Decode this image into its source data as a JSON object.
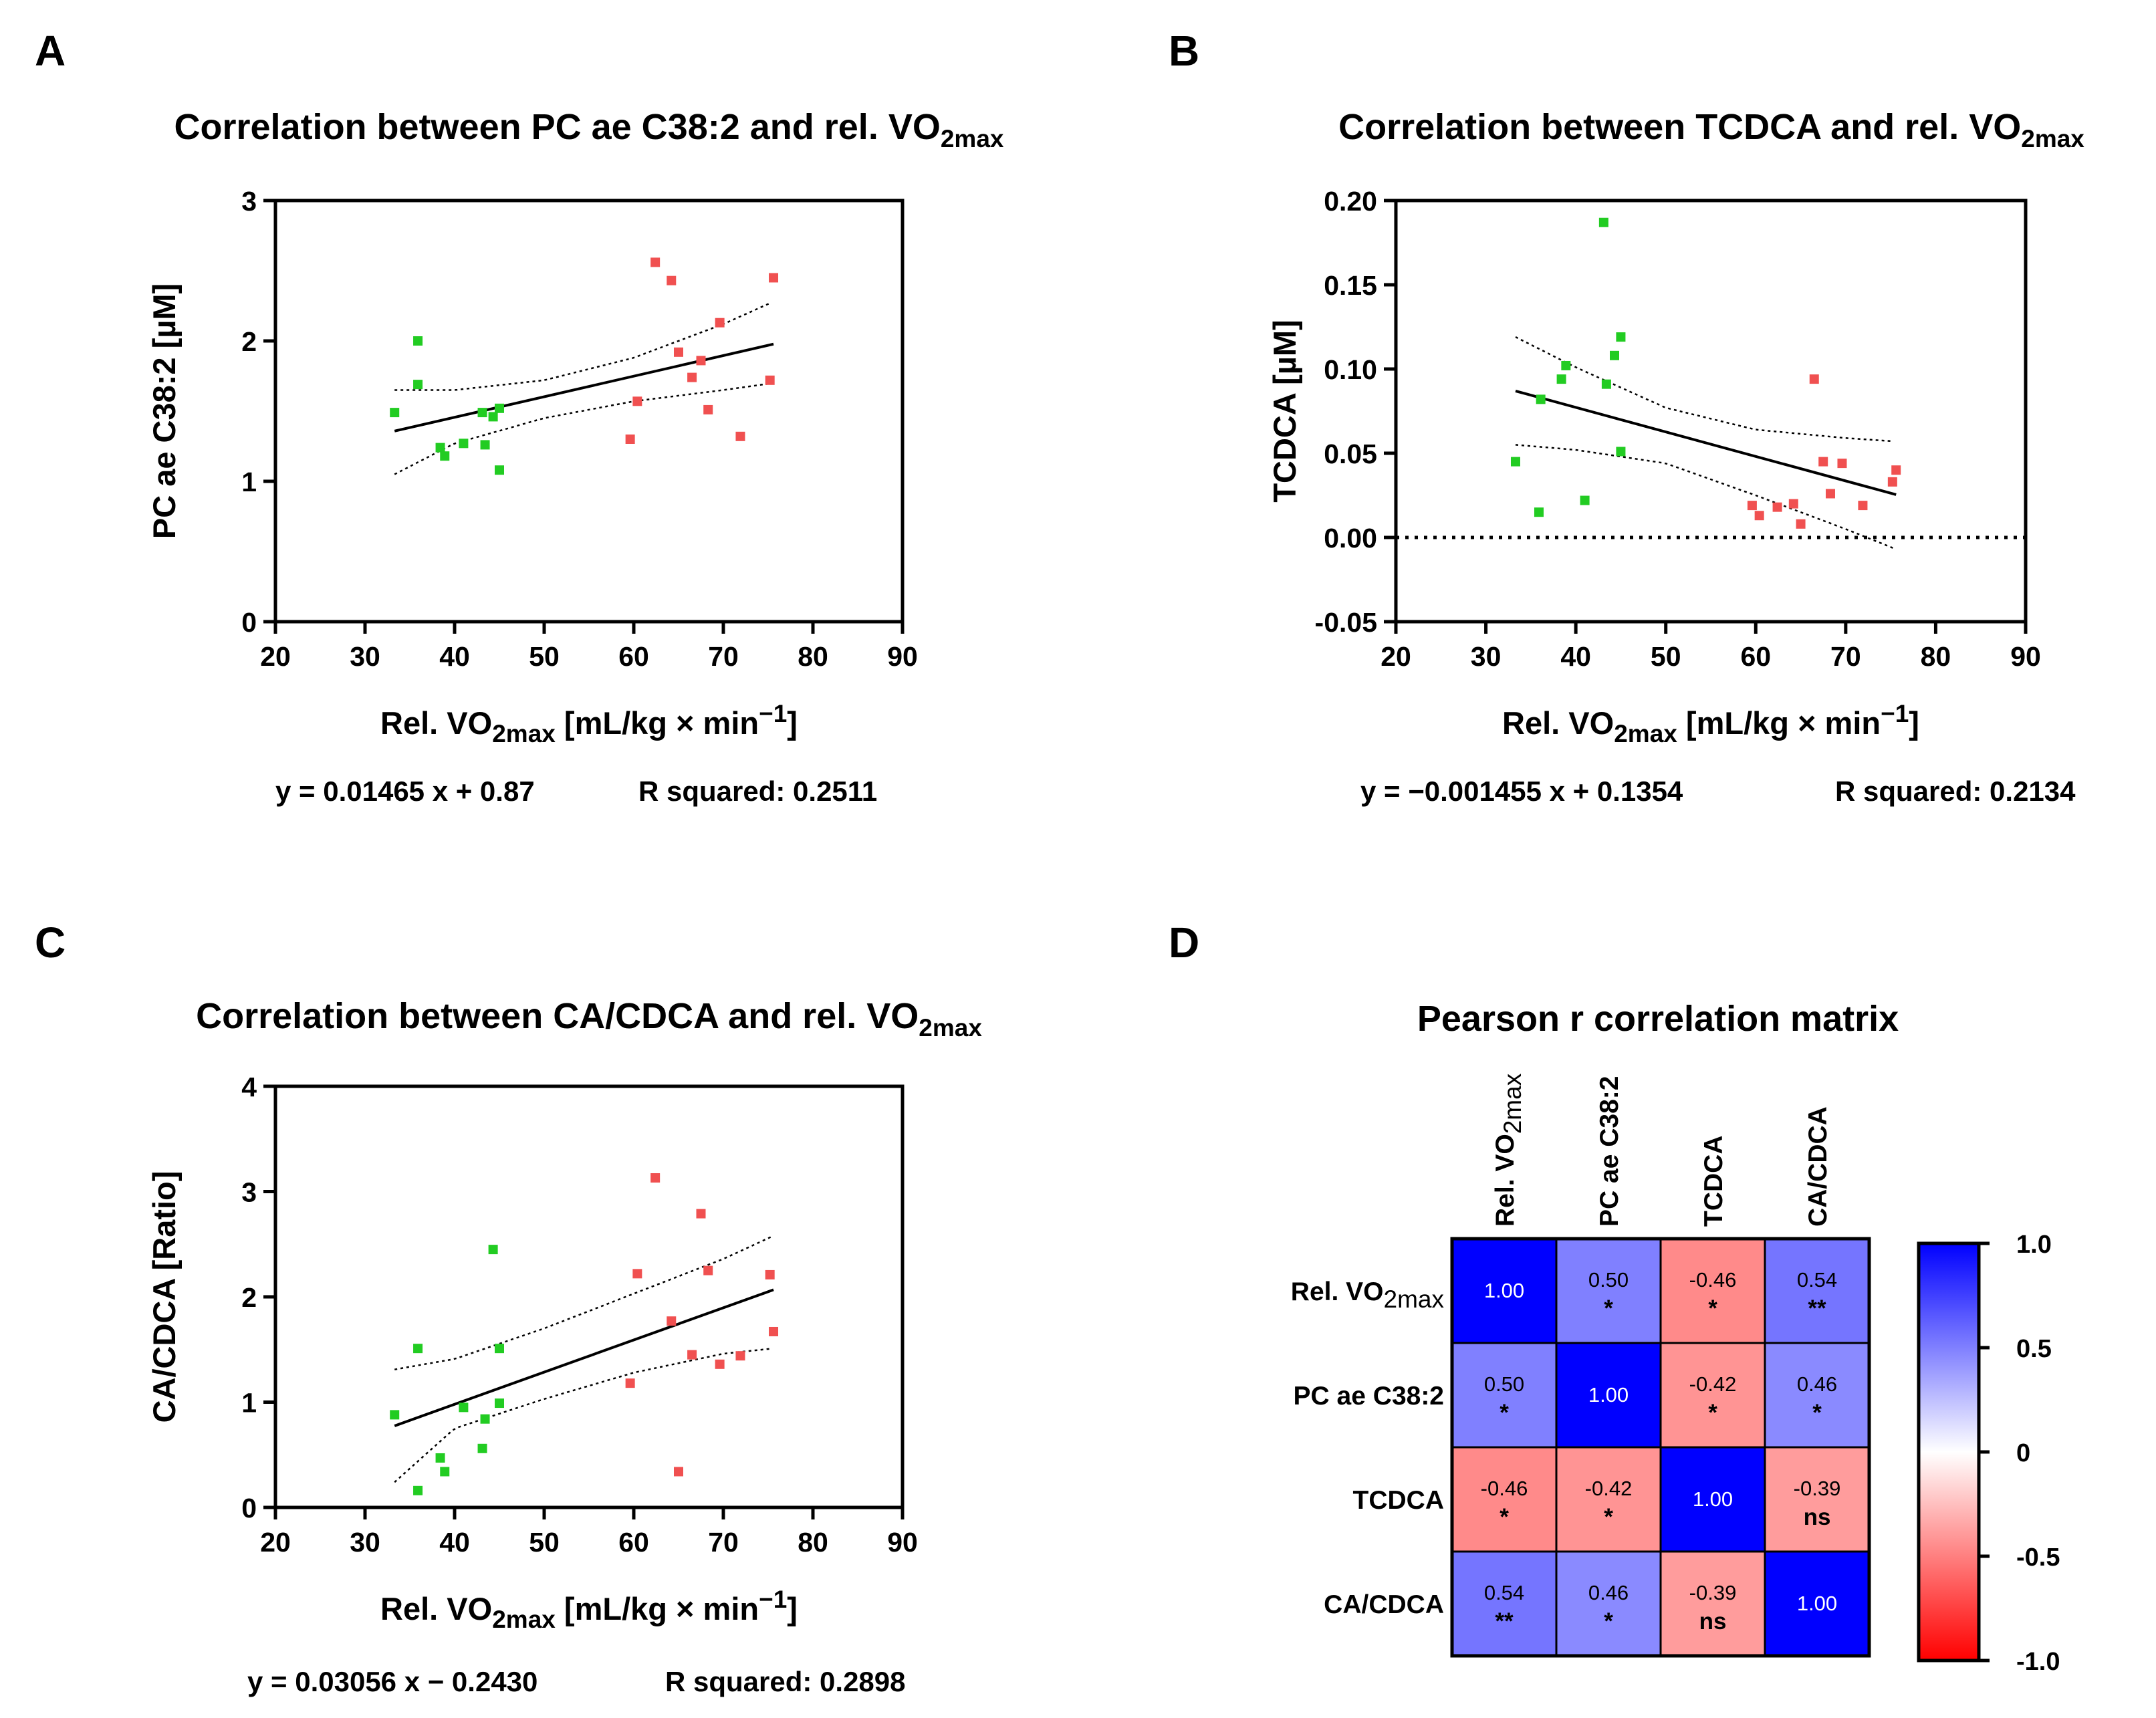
{
  "panel_labels": [
    "A",
    "B",
    "C",
    "D"
  ],
  "colors": {
    "low_group": "#22cc22",
    "high_group": "#f05050",
    "fit_line": "#000000",
    "cb_positive": "#0000ff",
    "cb_negative": "#ff0000",
    "cb_zero": "#ffffff"
  },
  "x_label": {
    "main": "Rel. VO",
    "subscript": "2max",
    "units": " [mL/kg × min",
    "exponent": "−1",
    "close": "]"
  },
  "chart_data": [
    {
      "type": "scatter",
      "panel": "A",
      "title": {
        "main": "Correlation between PC ae C38:2 and rel. VO",
        "subscript": "2max"
      },
      "ylabel": "PC ae C38:2 [µM]",
      "xlim": [
        20,
        90
      ],
      "ylim": [
        0,
        3
      ],
      "xticks": [
        "20",
        "30",
        "40",
        "50",
        "60",
        "70",
        "80",
        "90"
      ],
      "yticks": [
        "0",
        "1",
        "2",
        "3"
      ],
      "series": [
        {
          "name": "low",
          "color": "#22cc22",
          "points": [
            [
              33.3,
              1.49
            ],
            [
              35.9,
              2.0
            ],
            [
              35.9,
              1.69
            ],
            [
              38.4,
              1.24
            ],
            [
              38.9,
              1.18
            ],
            [
              41.0,
              1.27
            ],
            [
              43.1,
              1.49
            ],
            [
              43.4,
              1.26
            ],
            [
              44.3,
              1.46
            ],
            [
              45.0,
              1.52
            ],
            [
              45.0,
              1.08
            ]
          ]
        },
        {
          "name": "high",
          "color": "#f05050",
          "points": [
            [
              59.6,
              1.3
            ],
            [
              60.4,
              1.57
            ],
            [
              62.4,
              2.56
            ],
            [
              64.2,
              2.43
            ],
            [
              65.0,
              1.92
            ],
            [
              66.5,
              1.74
            ],
            [
              67.5,
              1.86
            ],
            [
              68.3,
              1.51
            ],
            [
              69.6,
              2.13
            ],
            [
              71.9,
              1.32
            ],
            [
              75.2,
              1.72
            ],
            [
              75.6,
              2.45
            ]
          ]
        }
      ],
      "fit": {
        "x_range": [
          33.3,
          75.6
        ],
        "slope": 0.01465,
        "intercept": 0.87,
        "upper_band": [
          [
            33.3,
            1.65
          ],
          [
            40,
            1.65
          ],
          [
            50,
            1.72
          ],
          [
            60,
            1.88
          ],
          [
            70,
            2.12
          ],
          [
            75.6,
            2.28
          ]
        ],
        "lower_band": [
          [
            33.3,
            1.05
          ],
          [
            40,
            1.27
          ],
          [
            50,
            1.45
          ],
          [
            60,
            1.57
          ],
          [
            70,
            1.65
          ],
          [
            75.6,
            1.7
          ]
        ]
      },
      "zero_line": false,
      "equation": "y = 0.01465 x + 0.87",
      "r_squared": "R squared: 0.2511"
    },
    {
      "type": "scatter",
      "panel": "B",
      "title": {
        "main": "Correlation between TCDCA and rel. VO",
        "subscript": "2max"
      },
      "ylabel": "TCDCA [µM]",
      "xlim": [
        20,
        90
      ],
      "ylim": [
        -0.05,
        0.2
      ],
      "xticks": [
        "20",
        "30",
        "40",
        "50",
        "60",
        "70",
        "80",
        "90"
      ],
      "yticks": [
        "-0.05",
        "0.00",
        "0.05",
        "0.10",
        "0.15",
        "0.20"
      ],
      "series": [
        {
          "name": "low",
          "color": "#22cc22",
          "points": [
            [
              33.3,
              0.045
            ],
            [
              35.9,
              0.015
            ],
            [
              36.1,
              0.082
            ],
            [
              38.4,
              0.094
            ],
            [
              38.9,
              0.102
            ],
            [
              41.0,
              0.022
            ],
            [
              43.1,
              0.187
            ],
            [
              43.4,
              0.091
            ],
            [
              44.3,
              0.108
            ],
            [
              45.0,
              0.119
            ],
            [
              45.0,
              0.051
            ]
          ]
        },
        {
          "name": "high",
          "color": "#f05050",
          "points": [
            [
              59.6,
              0.019
            ],
            [
              60.4,
              0.013
            ],
            [
              62.4,
              0.018
            ],
            [
              64.2,
              0.02
            ],
            [
              65.0,
              0.008
            ],
            [
              66.5,
              0.094
            ],
            [
              67.5,
              0.045
            ],
            [
              68.3,
              0.026
            ],
            [
              69.6,
              0.044
            ],
            [
              71.9,
              0.019
            ],
            [
              75.2,
              0.033
            ],
            [
              75.6,
              0.04
            ]
          ]
        }
      ],
      "fit": {
        "x_range": [
          33.3,
          75.6
        ],
        "slope": -0.001455,
        "intercept": 0.1354,
        "upper_band": [
          [
            33.3,
            0.119
          ],
          [
            40,
            0.101
          ],
          [
            50,
            0.077
          ],
          [
            60,
            0.064
          ],
          [
            70,
            0.059
          ],
          [
            75.6,
            0.057
          ]
        ],
        "lower_band": [
          [
            33.3,
            0.055
          ],
          [
            40,
            0.052
          ],
          [
            50,
            0.044
          ],
          [
            60,
            0.025
          ],
          [
            70,
            0.005
          ],
          [
            75.6,
            -0.007
          ]
        ]
      },
      "zero_line": true,
      "equation": "y = −0.001455 x + 0.1354",
      "r_squared": "R squared: 0.2134"
    },
    {
      "type": "scatter",
      "panel": "C",
      "title": {
        "main": "Correlation between CA/CDCA and rel. VO",
        "subscript": "2max"
      },
      "ylabel": "CA/CDCA [Ratio]",
      "xlim": [
        20,
        90
      ],
      "ylim": [
        0,
        4
      ],
      "xticks": [
        "20",
        "30",
        "40",
        "50",
        "60",
        "70",
        "80",
        "90"
      ],
      "yticks": [
        "0",
        "1",
        "2",
        "3",
        "4"
      ],
      "series": [
        {
          "name": "low",
          "color": "#22cc22",
          "points": [
            [
              33.3,
              0.88
            ],
            [
              35.9,
              0.16
            ],
            [
              35.9,
              1.51
            ],
            [
              38.4,
              0.47
            ],
            [
              38.9,
              0.34
            ],
            [
              41.0,
              0.95
            ],
            [
              43.1,
              0.56
            ],
            [
              43.4,
              0.84
            ],
            [
              44.3,
              2.45
            ],
            [
              45.0,
              1.51
            ],
            [
              45.0,
              0.99
            ]
          ]
        },
        {
          "name": "high",
          "color": "#f05050",
          "points": [
            [
              59.6,
              1.18
            ],
            [
              60.4,
              2.22
            ],
            [
              62.4,
              3.13
            ],
            [
              64.2,
              1.77
            ],
            [
              65.0,
              0.34
            ],
            [
              66.5,
              1.45
            ],
            [
              67.5,
              2.79
            ],
            [
              68.3,
              2.25
            ],
            [
              69.6,
              1.36
            ],
            [
              71.9,
              1.44
            ],
            [
              75.2,
              2.21
            ],
            [
              75.6,
              1.67
            ]
          ]
        }
      ],
      "fit": {
        "x_range": [
          33.3,
          75.6
        ],
        "slope": 0.03056,
        "intercept": -0.243,
        "upper_band": [
          [
            33.3,
            1.31
          ],
          [
            40,
            1.41
          ],
          [
            50,
            1.7
          ],
          [
            60,
            2.03
          ],
          [
            70,
            2.36
          ],
          [
            75.6,
            2.58
          ]
        ],
        "lower_band": [
          [
            33.3,
            0.24
          ],
          [
            40,
            0.75
          ],
          [
            50,
            1.03
          ],
          [
            60,
            1.28
          ],
          [
            70,
            1.46
          ],
          [
            75.6,
            1.51
          ]
        ]
      },
      "zero_line": false,
      "equation": "y = 0.03056 x − 0.2430",
      "r_squared": "R squared: 0.2898"
    },
    {
      "type": "heatmap",
      "panel": "D",
      "title": "Pearson r correlation matrix",
      "columns": [
        {
          "main": "Rel. VO",
          "subscript": "2max"
        },
        {
          "main": "PC ae C38:2",
          "subscript": ""
        },
        {
          "main": "TCDCA",
          "subscript": ""
        },
        {
          "main": "CA/CDCA",
          "subscript": ""
        }
      ],
      "rows": [
        {
          "main": "Rel. VO",
          "subscript": "2max"
        },
        {
          "main": "PC ae C38:2",
          "subscript": ""
        },
        {
          "main": "TCDCA",
          "subscript": ""
        },
        {
          "main": "CA/CDCA",
          "subscript": ""
        }
      ],
      "values": [
        [
          1.0,
          0.5,
          -0.46,
          0.54
        ],
        [
          0.5,
          1.0,
          -0.42,
          0.46
        ],
        [
          -0.46,
          -0.42,
          1.0,
          -0.39
        ],
        [
          0.54,
          0.46,
          -0.39,
          1.0
        ]
      ],
      "labels": [
        [
          "1.00",
          "0.50",
          "-0.46",
          "0.54"
        ],
        [
          "0.50",
          "1.00",
          "-0.42",
          "0.46"
        ],
        [
          "-0.46",
          "-0.42",
          "1.00",
          "-0.39"
        ],
        [
          "0.54",
          "0.46",
          "-0.39",
          "1.00"
        ]
      ],
      "significance": [
        [
          "",
          "*",
          "*",
          "**"
        ],
        [
          "*",
          "",
          "*",
          "*"
        ],
        [
          "*",
          "*",
          "",
          "ns"
        ],
        [
          "**",
          "*",
          "ns",
          ""
        ]
      ],
      "colorbar": {
        "range": [
          -1,
          1
        ],
        "ticks": [
          "1.0",
          "0.5",
          "0",
          "-0.5",
          "-1.0"
        ]
      }
    }
  ]
}
